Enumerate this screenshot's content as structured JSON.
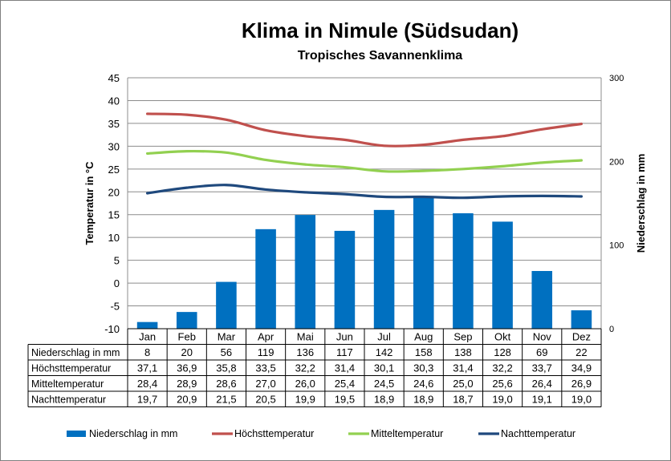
{
  "title": "Klima in Nimule (Südsudan)",
  "subtitle": "Tropisches Savannenklima",
  "chart_data": {
    "type": "bar",
    "categories": [
      "Jan",
      "Feb",
      "Mar",
      "Apr",
      "Mai",
      "Jun",
      "Jul",
      "Aug",
      "Sep",
      "Okt",
      "Nov",
      "Dez"
    ],
    "ylabel": "Temperatur in °C",
    "y2label": "Niederschlag in mm",
    "ylim": [
      -10,
      45
    ],
    "y2lim": [
      0,
      300
    ],
    "yticks": [
      "45",
      "40",
      "35",
      "30",
      "25",
      "20",
      "15",
      "10",
      "5",
      "0",
      "-5",
      "-10"
    ],
    "y2ticks": [
      "300",
      "200",
      "100",
      "0"
    ],
    "grid": true,
    "legend_position": "bottom",
    "series": [
      {
        "name": "Niederschlag in mm",
        "type": "bar",
        "axis": "right",
        "color": "#0070C0",
        "values": [
          8,
          20,
          56,
          119,
          136,
          117,
          142,
          158,
          138,
          128,
          69,
          22
        ],
        "labels": [
          "8",
          "20",
          "56",
          "119",
          "136",
          "117",
          "142",
          "158",
          "138",
          "128",
          "69",
          "22"
        ]
      },
      {
        "name": "Höchsttemperatur",
        "type": "line",
        "axis": "left",
        "color": "#C0504D",
        "values": [
          37.1,
          36.9,
          35.8,
          33.5,
          32.2,
          31.4,
          30.1,
          30.3,
          31.4,
          32.2,
          33.7,
          34.9
        ],
        "labels": [
          "37,1",
          "36,9",
          "35,8",
          "33,5",
          "32,2",
          "31,4",
          "30,1",
          "30,3",
          "31,4",
          "32,2",
          "33,7",
          "34,9"
        ]
      },
      {
        "name": "Mitteltemperatur",
        "type": "line",
        "axis": "left",
        "color": "#92D050",
        "values": [
          28.4,
          28.9,
          28.6,
          27.0,
          26.0,
          25.4,
          24.5,
          24.6,
          25.0,
          25.6,
          26.4,
          26.9
        ],
        "labels": [
          "28,4",
          "28,9",
          "28,6",
          "27,0",
          "26,0",
          "25,4",
          "24,5",
          "24,6",
          "25,0",
          "25,6",
          "26,4",
          "26,9"
        ]
      },
      {
        "name": "Nachttemperatur",
        "type": "line",
        "axis": "left",
        "color": "#1F497D",
        "values": [
          19.7,
          20.9,
          21.5,
          20.5,
          19.9,
          19.5,
          18.9,
          18.9,
          18.7,
          19.0,
          19.1,
          19.0
        ],
        "labels": [
          "19,7",
          "20,9",
          "21,5",
          "20,5",
          "19,9",
          "19,5",
          "18,9",
          "18,9",
          "18,7",
          "19,0",
          "19,1",
          "19,0"
        ]
      }
    ]
  }
}
